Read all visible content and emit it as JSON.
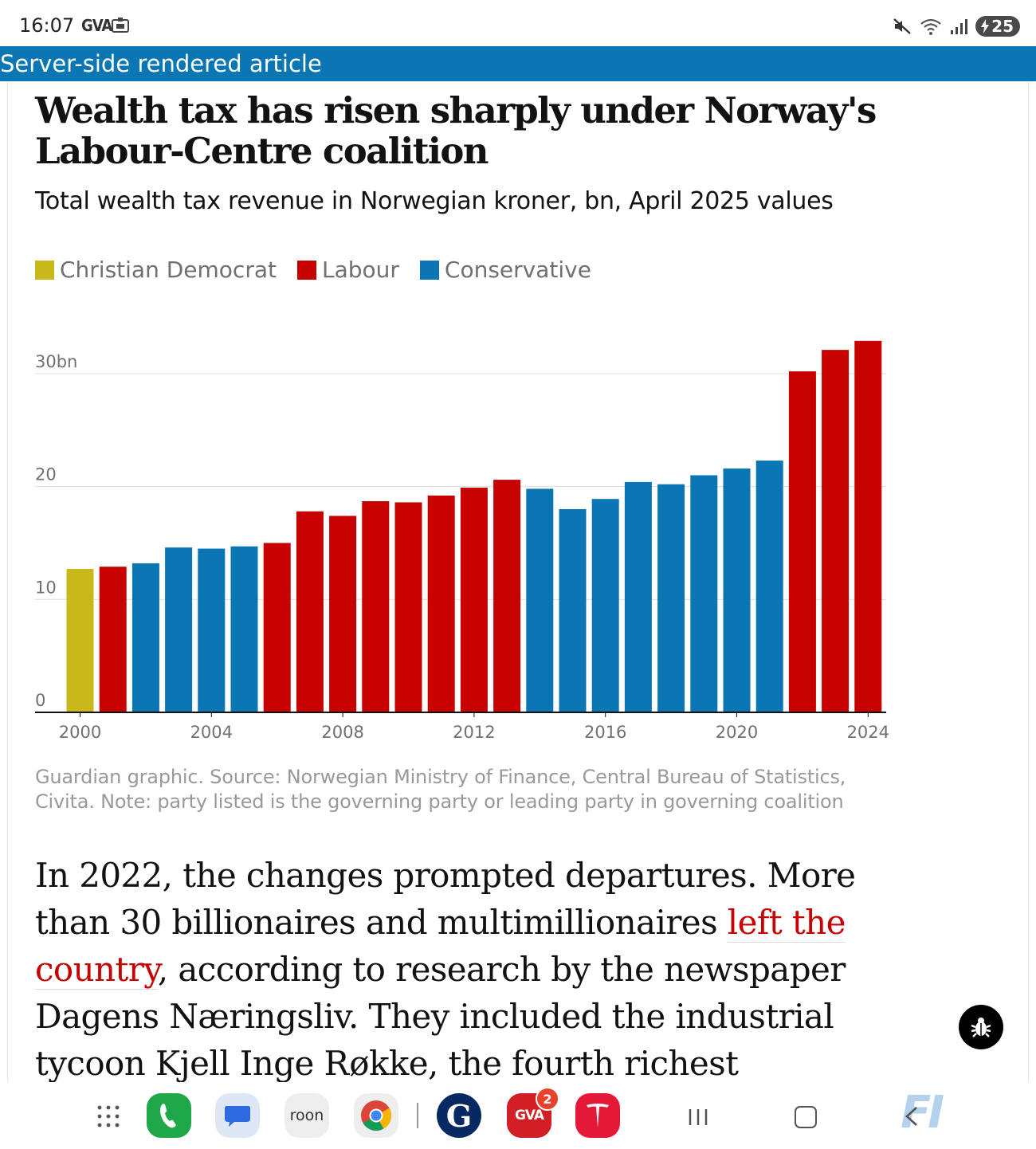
{
  "status_bar": {
    "time": "16:07",
    "gva": "GVA",
    "battery": "25"
  },
  "banner": {
    "text": "Server-side rendered article"
  },
  "article": {
    "headline": "Wealth tax has risen sharply under Norway's Labour-Centre coalition",
    "subhead": "Total wealth tax revenue in Norwegian kroner, bn, April 2025 values",
    "source_note": "Guardian graphic. Source: Norwegian Ministry of Finance, Central Bureau of Statistics, Civita. Note: party listed is the governing party or leading party in governing coalition",
    "body_before_link": "In 2022, the changes prompted departures. More than 30 billionaires and multimillionaires ",
    "body_link": "left the country",
    "body_after_link": ", according to research by the newspaper Dagens Næringsliv. They included the industrial tycoon Kjell Inge Røkke, the fourth richest Norwegian, with a"
  },
  "legend": [
    {
      "label": "Christian Democrat",
      "color": "#c9b81a"
    },
    {
      "label": "Labour",
      "color": "#c70000"
    },
    {
      "label": "Conservative",
      "color": "#0a77b4"
    }
  ],
  "chart_data": {
    "type": "bar",
    "title": "Wealth tax has risen sharply under Norway's Labour-Centre coalition",
    "subtitle": "Total wealth tax revenue in Norwegian kroner, bn, April 2025 values",
    "xlabel": "",
    "ylabel": "",
    "ylim": [
      0,
      33
    ],
    "y_ticks": [
      0,
      10,
      20,
      30
    ],
    "y_tick_labels": [
      "0",
      "10",
      "20",
      "30bn"
    ],
    "x_tick_labels": [
      "2000",
      "2004",
      "2008",
      "2012",
      "2016",
      "2020",
      "2024"
    ],
    "grid": true,
    "legend_position": "top-left",
    "party_colors": {
      "Christian Democrat": "#c9b81a",
      "Labour": "#c70000",
      "Conservative": "#0a77b4"
    },
    "categories": [
      2000,
      2001,
      2002,
      2003,
      2004,
      2005,
      2006,
      2007,
      2008,
      2009,
      2010,
      2011,
      2012,
      2013,
      2014,
      2015,
      2016,
      2017,
      2018,
      2019,
      2020,
      2021,
      2022,
      2023,
      2024
    ],
    "values": [
      12.7,
      12.9,
      13.2,
      14.6,
      14.5,
      14.7,
      15.0,
      17.8,
      17.4,
      18.7,
      18.6,
      19.2,
      19.9,
      20.6,
      19.8,
      18.0,
      18.9,
      20.4,
      20.2,
      21.0,
      21.6,
      22.3,
      30.2,
      32.1,
      32.9
    ],
    "party": [
      "Christian Democrat",
      "Labour",
      "Conservative",
      "Conservative",
      "Conservative",
      "Conservative",
      "Labour",
      "Labour",
      "Labour",
      "Labour",
      "Labour",
      "Labour",
      "Labour",
      "Labour",
      "Conservative",
      "Conservative",
      "Conservative",
      "Conservative",
      "Conservative",
      "Conservative",
      "Conservative",
      "Conservative",
      "Labour",
      "Labour",
      "Labour"
    ]
  },
  "dock": {
    "apps": [
      "phone-app",
      "messages-app",
      "roon-app",
      "chrome-app",
      "guardian-app",
      "gva-app",
      "tesla-app"
    ],
    "roon_label": "roon",
    "gva_label": "GVA",
    "gva_badge": "2",
    "guardian_label": "G",
    "fi_label": "FI"
  }
}
